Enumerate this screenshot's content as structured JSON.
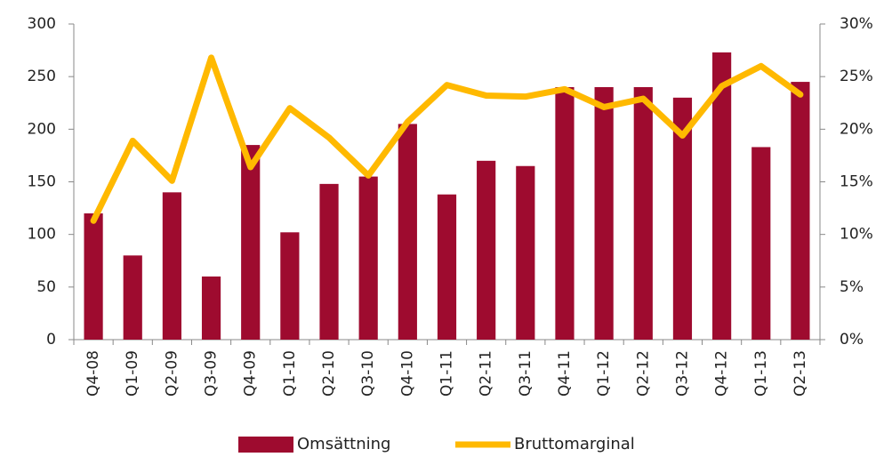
{
  "chart_data": {
    "type": "bar_line",
    "categories": [
      "Q4-08",
      "Q1-09",
      "Q2-09",
      "Q3-09",
      "Q4-09",
      "Q1-10",
      "Q2-10",
      "Q3-10",
      "Q4-10",
      "Q1-11",
      "Q2-11",
      "Q3-11",
      "Q4-11",
      "Q1-12",
      "Q2-12",
      "Q3-12",
      "Q4-12",
      "Q1-13",
      "Q2-13"
    ],
    "series": [
      {
        "name": "Omsättning",
        "type": "bar",
        "color": "#9e0b2f",
        "values": [
          120,
          80,
          140,
          60,
          185,
          102,
          148,
          155,
          205,
          138,
          170,
          165,
          240,
          240,
          240,
          230,
          273,
          183,
          245
        ]
      },
      {
        "name": "Bruttomarginal",
        "type": "line",
        "axis": "y2",
        "color": "#ffb900",
        "values": [
          11.3,
          18.9,
          15.1,
          26.8,
          16.4,
          22.0,
          19.2,
          15.6,
          20.7,
          24.2,
          23.2,
          23.1,
          23.8,
          22.1,
          22.9,
          19.4,
          24.1,
          26.0,
          23.3
        ]
      }
    ],
    "ylim": [
      0,
      300
    ],
    "yticks": [
      0,
      50,
      100,
      150,
      200,
      250,
      300
    ],
    "y2lim": [
      0,
      30
    ],
    "y2ticks": [
      {
        "value": 0,
        "label": "0%"
      },
      {
        "value": 5,
        "label": "5%"
      },
      {
        "value": 10,
        "label": "10%"
      },
      {
        "value": 15,
        "label": "15%"
      },
      {
        "value": 20,
        "label": "20%"
      },
      {
        "value": 25,
        "label": "25%"
      },
      {
        "value": 30,
        "label": "30%"
      }
    ],
    "legend": "bottom"
  }
}
